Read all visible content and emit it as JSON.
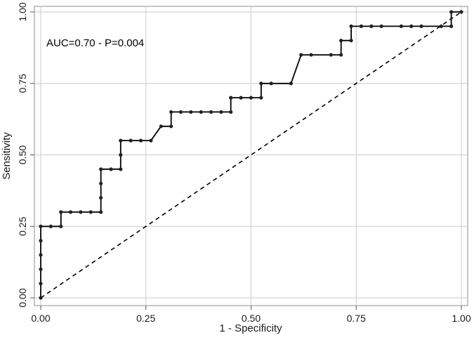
{
  "chart_data": {
    "type": "line",
    "annotation": "AUC=0.70 - P=0.004",
    "xlabel": "1 - Specificity",
    "ylabel": "Sensitivity",
    "xlim": [
      0,
      1
    ],
    "ylim": [
      0,
      1
    ],
    "x_ticks": [
      "0.00",
      "0.25",
      "0.50",
      "0.75",
      "1.00"
    ],
    "y_ticks": [
      "0.00",
      "0.25",
      "0.50",
      "0.75",
      "1.00"
    ],
    "grid": true,
    "series": [
      {
        "style": "solid-with-markers",
        "x": [
          0,
          0,
          0,
          0,
          0,
          0,
          0.024,
          0.048,
          0.048,
          0.071,
          0.095,
          0.119,
          0.143,
          0.143,
          0.143,
          0.143,
          0.167,
          0.19,
          0.19,
          0.19,
          0.214,
          0.238,
          0.262,
          0.286,
          0.31,
          0.31,
          0.333,
          0.357,
          0.381,
          0.405,
          0.429,
          0.452,
          0.452,
          0.476,
          0.5,
          0.524,
          0.524,
          0.548,
          0.595,
          0.619,
          0.643,
          0.69,
          0.714,
          0.714,
          0.738,
          0.738,
          0.762,
          0.786,
          0.81,
          0.857,
          0.881,
          0.905,
          0.952,
          0.976,
          0.976,
          1.0
        ],
        "y": [
          0,
          0.05,
          0.1,
          0.15,
          0.2,
          0.25,
          0.25,
          0.25,
          0.3,
          0.3,
          0.3,
          0.3,
          0.3,
          0.35,
          0.4,
          0.45,
          0.45,
          0.45,
          0.5,
          0.55,
          0.55,
          0.55,
          0.55,
          0.6,
          0.6,
          0.65,
          0.65,
          0.65,
          0.65,
          0.65,
          0.65,
          0.65,
          0.7,
          0.7,
          0.7,
          0.7,
          0.75,
          0.75,
          0.75,
          0.85,
          0.85,
          0.85,
          0.85,
          0.9,
          0.9,
          0.95,
          0.95,
          0.95,
          0.95,
          0.95,
          0.95,
          0.95,
          0.95,
          0.95,
          1.0,
          1.0
        ]
      },
      {
        "style": "dashed",
        "x": [
          0,
          1
        ],
        "y": [
          0,
          1
        ]
      }
    ]
  }
}
